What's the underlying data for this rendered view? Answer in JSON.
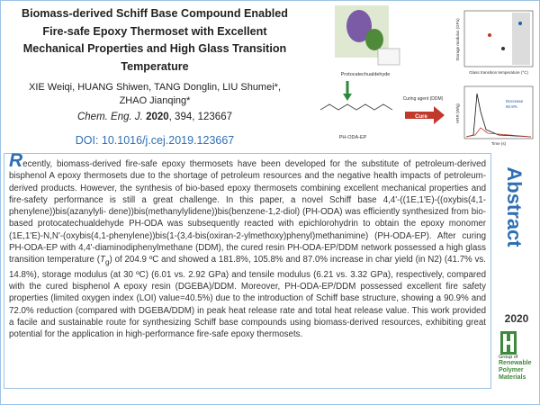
{
  "header": {
    "title": [
      "Biomass-derived Schiff Base Compound Enabled",
      "Fire-safe Epoxy Thermoset with Excellent",
      "Mechanical Properties and High Glass Transition",
      "Temperature"
    ],
    "authors": [
      "XIE Weiqi, HUANG Shiwen, TANG Donglin, LIU Shumei*,",
      "ZHAO Jianqing*"
    ],
    "citation": {
      "journal": "Chem. Eng. J.",
      "year": "2020",
      "rest": ", 394, 123667"
    },
    "doi": "DOI: 10.1016/j.cej.2019.123667"
  },
  "graphical_abstract": {
    "labels": [
      "Protocatechualdehyde",
      "PH-ODA-EP",
      "Curing agent (DDM)",
      "Cure",
      "Storage modulus (GPa)",
      "Glass transition temperature (°C)",
      "Decrease",
      "90.9%",
      "HRR (W/g)",
      "Time (s)"
    ]
  },
  "abstract": {
    "initial": "R",
    "text_before": "ecently, biomass-derived fire-safe epoxy thermosets have been developed for the substitute of petroleum-derived bisphenol A epoxy thermosets due to the shortage of petroleum resources and the negative health impacts of petroleum-derived products. However, the synthesis of bio-based epoxy thermosets combining excellent mechanical properties and fire-safety performance is still a great challenge. In this paper, a novel Schiff base 4,4'-((1E,1'E)-((oxybis(4,1-phenylene))bis(azanylyli- dene))bis(methanylylidene))bis(benzene-1,2-diol) (PH-ODA) was efficiently synthesized from bio-based protocatechualdehyde PH-ODA was subsequently reacted with epichlorohydrin to obtain the epoxy monomer (1E,1'E)-N,N'-(oxybis(4,1-phenylene))bis(1-(3,4-bis(oxiran-2-ylmethoxy)phenyl)methanimine) (PH-ODA-EP). After curing PH-ODA-EP with 4,4'-diaminodiphenylmethane (DDM), the cured resin PH-ODA-EP/DDM network possessed a high glass transition temperature (",
    "symbol": "T",
    "subscript": "g",
    "text_after": ") of 204.9 ºC and showed a 181.8%, 105.8% and 87.0% increase in char yield (in N2) (41.7% vs. 14.8%), storage modulus (at 30 ºC) (6.01 vs. 2.92 GPa) and tensile modulus (6.21 vs. 3.32 GPa), respectively, compared with the cured bisphenol A epoxy resin (DGEBA)/DDM. Moreover, PH-ODA-EP/DDM possessed excellent fire safety properties (limited oxygen index (LOI) value=40.5%) due to the introduction of Schiff base structure, showing a 90.9% and 72.0% reduction (compared with DGEBA/DDM) in peak heat release rate and total heat release value. This work provided a facile and sustainable route for synthesizing Schiff base compounds using biomass-derived resources, exhibiting great potential for the application in high-performance fire-safe epoxy thermosets."
  },
  "sidebar": {
    "label": "Abstract",
    "year": "2020",
    "logo": [
      "Group of",
      "Renewable",
      "Polymer",
      "Materials"
    ]
  }
}
